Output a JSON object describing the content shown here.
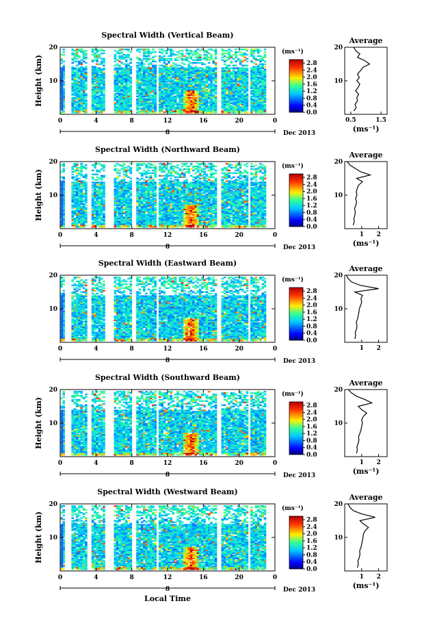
{
  "figure": {
    "xlabel": "Local Time",
    "date_label": "Dec 2013",
    "day_marker": "8",
    "colorbar_unit": "(ms⁻¹)",
    "avg_title": "Average",
    "avg_unit": "(ms⁻¹)",
    "ylabel": "Height (km)"
  },
  "chart_data": [
    {
      "type": "heatmap",
      "title": "Spectral Width (Vertical Beam)",
      "ylabel": "Height (km)",
      "xlabel": "",
      "x_ticks": [
        "0",
        "4",
        "8",
        "12",
        "16",
        "20",
        "0"
      ],
      "y_ticks": [
        "10",
        "20"
      ],
      "xlim": [
        0,
        24
      ],
      "ylim": [
        0,
        20
      ],
      "data_gaps_hours": [
        [
          0.4,
          1.2
        ],
        [
          2.9,
          3.5
        ],
        [
          5.0,
          6.0
        ],
        [
          7.9,
          8.4
        ],
        [
          10.6,
          11.0
        ],
        [
          17.5,
          18.0
        ],
        [
          20.8,
          21.2
        ]
      ],
      "colorbar": {
        "unit": "(ms⁻¹)",
        "ticks": [
          "0.0",
          "0.4",
          "0.8",
          "1.2",
          "1.6",
          "2.0",
          "2.4",
          "2.8"
        ],
        "range": [
          0,
          3.0
        ]
      },
      "average_profile": {
        "title": "Average",
        "xlabel": "(ms⁻¹)",
        "x_ticks": [
          "0.5",
          "1.5"
        ],
        "xlim": [
          0.3,
          1.7
        ],
        "y_ticks": [
          "10",
          "20"
        ],
        "height_km": [
          1,
          2,
          3,
          4,
          5,
          6,
          7,
          8,
          9,
          10,
          11,
          12,
          13,
          14,
          15,
          16,
          17,
          18,
          19,
          20
        ],
        "values": [
          0.6,
          0.68,
          0.64,
          0.72,
          0.7,
          0.76,
          0.66,
          0.74,
          0.8,
          0.7,
          0.78,
          0.72,
          0.82,
          0.9,
          1.12,
          0.96,
          0.72,
          0.8,
          0.66,
          0.6
        ]
      }
    },
    {
      "type": "heatmap",
      "title": "Spectral Width (Northward Beam)",
      "ylabel": "Height (km)",
      "xlabel": "",
      "x_ticks": [
        "0",
        "4",
        "8",
        "12",
        "16",
        "20",
        "0"
      ],
      "y_ticks": [
        "10",
        "20"
      ],
      "xlim": [
        0,
        24
      ],
      "ylim": [
        0,
        20
      ],
      "data_gaps_hours": [
        [
          0.4,
          1.2
        ],
        [
          2.9,
          3.5
        ],
        [
          5.0,
          6.0
        ],
        [
          7.9,
          8.4
        ],
        [
          10.6,
          11.0
        ],
        [
          17.5,
          18.0
        ],
        [
          20.8,
          21.2
        ]
      ],
      "colorbar": {
        "unit": "(ms⁻¹)",
        "ticks": [
          "0.0",
          "0.4",
          "0.8",
          "1.2",
          "1.6",
          "2.0",
          "2.4",
          "2.8"
        ],
        "range": [
          0,
          3.0
        ]
      },
      "average_profile": {
        "title": "Average",
        "xlabel": "(ms⁻¹)",
        "x_ticks": [
          "1",
          "2"
        ],
        "xlim": [
          0,
          2.5
        ],
        "y_ticks": [
          "10",
          "20"
        ],
        "height_km": [
          1,
          2,
          3,
          4,
          5,
          6,
          7,
          8,
          9,
          10,
          11,
          12,
          13,
          14,
          15,
          16,
          17,
          18,
          19,
          20
        ],
        "values": [
          0.5,
          0.56,
          0.54,
          0.6,
          0.62,
          0.58,
          0.66,
          0.7,
          0.64,
          0.72,
          0.68,
          0.74,
          0.82,
          1.05,
          0.7,
          1.5,
          0.92,
          0.6,
          0.3,
          0.15
        ]
      }
    },
    {
      "type": "heatmap",
      "title": "Spectral Width (Eastward Beam)",
      "ylabel": "",
      "xlabel": "",
      "x_ticks": [
        "0",
        "4",
        "8",
        "12",
        "16",
        "20",
        "0"
      ],
      "y_ticks": [
        "10",
        "20"
      ],
      "xlim": [
        0,
        24
      ],
      "ylim": [
        0,
        20
      ],
      "data_gaps_hours": [
        [
          0.4,
          1.2
        ],
        [
          2.9,
          3.5
        ],
        [
          5.0,
          6.0
        ],
        [
          7.9,
          8.4
        ],
        [
          10.6,
          11.0
        ],
        [
          17.5,
          18.0
        ],
        [
          20.8,
          21.2
        ]
      ],
      "colorbar": {
        "unit": "(ms⁻¹)",
        "ticks": [
          "0.0",
          "0.4",
          "0.8",
          "1.2",
          "1.6",
          "2.0",
          "2.4",
          "2.8"
        ],
        "range": [
          0,
          3.0
        ]
      },
      "average_profile": {
        "title": "Average",
        "xlabel": "",
        "x_ticks": [
          "1",
          "2"
        ],
        "xlim": [
          0,
          2.5
        ],
        "y_ticks": [
          "10",
          "20"
        ],
        "height_km": [
          1,
          2,
          3,
          4,
          5,
          6,
          7,
          8,
          9,
          10,
          11,
          12,
          13,
          14,
          15,
          16,
          17,
          18,
          19,
          20
        ],
        "values": [
          0.6,
          0.64,
          0.62,
          0.7,
          0.72,
          0.68,
          0.76,
          0.8,
          0.84,
          0.86,
          0.94,
          1.0,
          0.96,
          1.05,
          0.6,
          2.0,
          0.9,
          0.4,
          0.2,
          0.1
        ]
      }
    },
    {
      "type": "heatmap",
      "title": "Spectral Width (Southward Beam)",
      "ylabel": "Height (km)",
      "xlabel": "",
      "x_ticks": [
        "0",
        "4",
        "8",
        "12",
        "16",
        "20",
        "0"
      ],
      "y_ticks": [
        "10",
        "20"
      ],
      "xlim": [
        0,
        24
      ],
      "ylim": [
        0,
        20
      ],
      "data_gaps_hours": [
        [
          0.4,
          1.2
        ],
        [
          2.9,
          3.5
        ],
        [
          5.0,
          6.0
        ],
        [
          7.9,
          8.4
        ],
        [
          10.6,
          11.0
        ],
        [
          17.5,
          18.0
        ],
        [
          20.8,
          21.2
        ]
      ],
      "colorbar": {
        "unit": "(ms⁻¹)",
        "ticks": [
          "0.0",
          "0.4",
          "0.8",
          "1.2",
          "1.6",
          "2.0",
          "2.4",
          "2.8"
        ],
        "range": [
          0,
          3.0
        ]
      },
      "average_profile": {
        "title": "Average",
        "xlabel": "(ms⁻¹)",
        "x_ticks": [
          "1",
          "2"
        ],
        "xlim": [
          0,
          2.5
        ],
        "y_ticks": [
          "10",
          "20"
        ],
        "height_km": [
          1,
          2,
          3,
          4,
          5,
          6,
          7,
          8,
          9,
          10,
          11,
          12,
          13,
          14,
          15,
          16,
          17,
          18,
          19,
          20
        ],
        "values": [
          0.7,
          0.74,
          0.72,
          0.8,
          0.84,
          0.82,
          0.9,
          0.96,
          1.0,
          1.04,
          1.0,
          1.1,
          1.3,
          1.0,
          0.8,
          1.6,
          1.2,
          0.7,
          0.4,
          0.2
        ]
      }
    },
    {
      "type": "heatmap",
      "title": "Spectral Width (Westward Beam)",
      "ylabel": "Height (km)",
      "xlabel": "Local Time",
      "x_ticks": [
        "0",
        "4",
        "8",
        "12",
        "16",
        "20",
        "0"
      ],
      "y_ticks": [
        "10",
        "20"
      ],
      "xlim": [
        0,
        24
      ],
      "ylim": [
        0,
        20
      ],
      "data_gaps_hours": [
        [
          0.4,
          1.2
        ],
        [
          2.9,
          3.5
        ],
        [
          5.0,
          6.0
        ],
        [
          7.9,
          8.4
        ],
        [
          10.6,
          11.0
        ],
        [
          17.5,
          18.0
        ],
        [
          20.8,
          21.2
        ]
      ],
      "colorbar": {
        "unit": "(ms⁻¹)",
        "ticks": [
          "0.0",
          "0.4",
          "0.8",
          "1.2",
          "1.6",
          "2.0",
          "2.4",
          "2.8"
        ],
        "range": [
          0,
          3.0
        ]
      },
      "average_profile": {
        "title": "Average",
        "xlabel": "(ms⁻¹)",
        "x_ticks": [
          "1",
          "2"
        ],
        "xlim": [
          0,
          2.5
        ],
        "y_ticks": [
          "10",
          "20"
        ],
        "height_km": [
          1,
          2,
          3,
          4,
          5,
          6,
          7,
          8,
          9,
          10,
          11,
          12,
          13,
          14,
          15,
          16,
          17,
          18,
          19,
          20
        ],
        "values": [
          0.75,
          0.8,
          0.78,
          0.86,
          0.9,
          0.88,
          0.96,
          1.0,
          1.04,
          1.08,
          1.1,
          1.2,
          1.4,
          1.1,
          0.9,
          1.8,
          1.0,
          0.5,
          0.3,
          0.2
        ]
      }
    }
  ]
}
